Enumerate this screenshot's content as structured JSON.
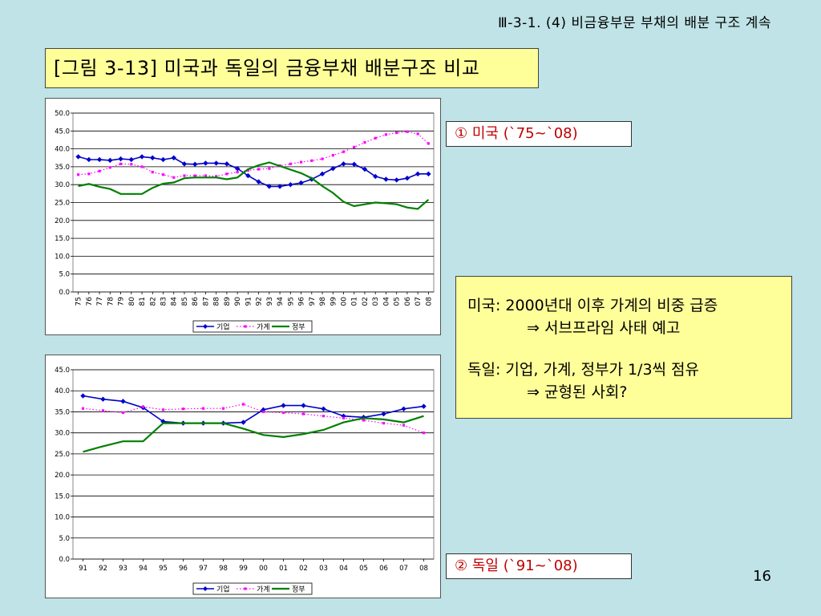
{
  "header": {
    "text": "Ⅲ-3-1. (4) 비금융부문 부채의 배분 구조 계속"
  },
  "title": {
    "text": "[그림 3-13] 미국과 독일의 금융부채 배분구조 비교"
  },
  "labels": {
    "us": "① 미국 (`75~`08)",
    "de": "② 독일 (`91~`08)"
  },
  "notes": {
    "us_line1": "미국: 2000년대 이후 가계의 비중 급증",
    "us_line2": "⇒ 서브프라임 사태 예고",
    "de_line1": "독일: 기업, 가계, 정부가 1/3씩 점유",
    "de_line2": "⇒ 균형된 사회?"
  },
  "page_number": "16",
  "colors": {
    "corp": "#0000cc",
    "household": "#ff00ff",
    "government": "#008000"
  },
  "chart_data": [
    {
      "type": "line",
      "x": [
        "75",
        "76",
        "77",
        "78",
        "79",
        "80",
        "81",
        "82",
        "83",
        "84",
        "85",
        "86",
        "87",
        "88",
        "89",
        "90",
        "91",
        "92",
        "93",
        "94",
        "95",
        "96",
        "97",
        "98",
        "99",
        "00",
        "01",
        "02",
        "03",
        "04",
        "05",
        "06",
        "07",
        "08"
      ],
      "ylim": [
        0,
        50
      ],
      "ytick_labels": [
        "0.0",
        "5.0",
        "10.0",
        "15.0",
        "20.0",
        "25.0",
        "30.0",
        "35.0",
        "40.0",
        "45.0",
        "50.0"
      ],
      "series": [
        {
          "name": "기업",
          "values": [
            37.8,
            37.0,
            37.0,
            36.8,
            37.2,
            37.0,
            37.8,
            37.5,
            37.0,
            37.5,
            35.8,
            35.7,
            36.0,
            36.0,
            35.8,
            34.5,
            32.5,
            30.8,
            29.5,
            29.5,
            30.0,
            30.5,
            31.5,
            33.0,
            34.5,
            35.8,
            35.7,
            34.3,
            32.3,
            31.5,
            31.3,
            31.8,
            33.0,
            33.0
          ]
        },
        {
          "name": "가계",
          "values": [
            32.8,
            33.0,
            33.8,
            34.8,
            35.8,
            35.7,
            35.0,
            33.5,
            32.8,
            32.0,
            32.5,
            32.5,
            32.5,
            32.3,
            33.0,
            33.5,
            34.0,
            34.3,
            34.5,
            35.3,
            35.8,
            36.3,
            36.7,
            37.2,
            38.2,
            39.2,
            40.5,
            41.8,
            43.0,
            44.0,
            44.5,
            44.8,
            44.2,
            41.5
          ]
        },
        {
          "name": "정부",
          "values": [
            29.6,
            30.2,
            29.4,
            28.8,
            27.4,
            27.4,
            27.4,
            29.1,
            30.3,
            30.6,
            31.8,
            32.0,
            32.0,
            32.0,
            31.5,
            32.0,
            34.3,
            35.4,
            36.2,
            35.2,
            34.2,
            33.2,
            31.8,
            29.6,
            27.7,
            25.2,
            24.0,
            24.5,
            25.0,
            24.8,
            24.5,
            23.6,
            23.2,
            25.8
          ]
        }
      ]
    },
    {
      "type": "line",
      "x": [
        "91",
        "92",
        "93",
        "94",
        "95",
        "96",
        "97",
        "98",
        "99",
        "00",
        "01",
        "02",
        "03",
        "04",
        "05",
        "06",
        "07",
        "08"
      ],
      "ylim": [
        0,
        45
      ],
      "ytick_labels": [
        "0.0",
        "5.0",
        "10.0",
        "15.0",
        "20.0",
        "25.0",
        "30.0",
        "35.0",
        "40.0",
        "45.0"
      ],
      "series": [
        {
          "name": "기업",
          "values": [
            38.8,
            38.0,
            37.5,
            36.0,
            32.7,
            32.3,
            32.3,
            32.3,
            32.5,
            35.5,
            36.5,
            36.5,
            35.7,
            34.0,
            33.7,
            34.5,
            35.7,
            36.3
          ]
        },
        {
          "name": "가계",
          "values": [
            35.8,
            35.3,
            34.8,
            36.2,
            35.5,
            35.7,
            35.8,
            35.8,
            36.8,
            35.0,
            34.8,
            34.5,
            34.0,
            33.5,
            33.0,
            32.3,
            31.8,
            30.0
          ]
        },
        {
          "name": "정부",
          "values": [
            25.5,
            26.8,
            28.0,
            28.0,
            32.3,
            32.3,
            32.3,
            32.3,
            31.0,
            29.5,
            29.0,
            29.7,
            30.7,
            32.5,
            33.5,
            33.2,
            32.5,
            34.0
          ]
        }
      ]
    }
  ]
}
